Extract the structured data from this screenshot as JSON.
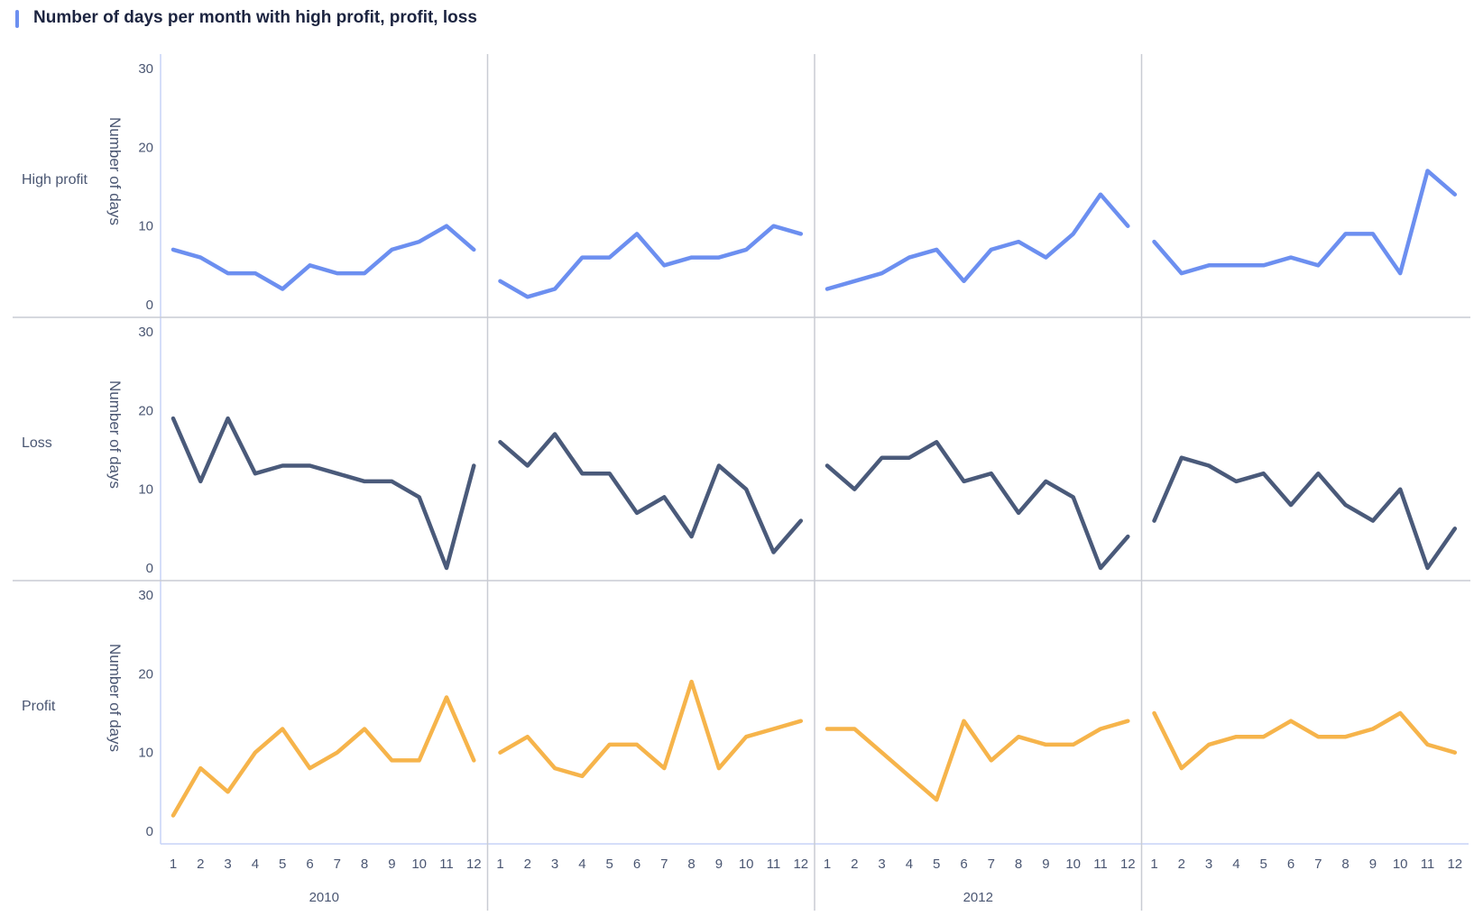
{
  "title": "Number of days per month with high profit, profit, loss",
  "accent_color": "#6c8ff0",
  "chart_data": {
    "type": "line",
    "title": "Number of days per month with high profit, profit, loss",
    "ylabel": "Number of days",
    "xlabel": "",
    "ylim": [
      0,
      30
    ],
    "y_ticks": [
      0,
      10,
      20,
      30
    ],
    "x": [
      1,
      2,
      3,
      4,
      5,
      6,
      7,
      8,
      9,
      10,
      11,
      12
    ],
    "columns": [
      {
        "label": "2010"
      },
      {
        "label": ""
      },
      {
        "label": "2012"
      },
      {
        "label": ""
      }
    ],
    "rows": [
      {
        "label": "High profit",
        "color": "#6c8ff0",
        "panels": [
          [
            7,
            6,
            4,
            4,
            2,
            5,
            4,
            4,
            7,
            8,
            10,
            7
          ],
          [
            3,
            1,
            2,
            6,
            6,
            9,
            5,
            6,
            6,
            7,
            10,
            9
          ],
          [
            2,
            3,
            4,
            6,
            7,
            3,
            7,
            8,
            6,
            9,
            14,
            10
          ],
          [
            8,
            4,
            5,
            5,
            5,
            6,
            5,
            9,
            9,
            4,
            17,
            14
          ]
        ]
      },
      {
        "label": "Loss",
        "color": "#4a5a7a",
        "panels": [
          [
            19,
            11,
            19,
            12,
            13,
            13,
            12,
            11,
            11,
            9,
            0,
            13
          ],
          [
            16,
            13,
            17,
            12,
            12,
            7,
            9,
            4,
            13,
            10,
            2,
            6
          ],
          [
            13,
            10,
            14,
            14,
            16,
            11,
            12,
            7,
            11,
            9,
            0,
            4
          ],
          [
            6,
            14,
            13,
            11,
            12,
            8,
            12,
            8,
            6,
            10,
            0,
            5
          ]
        ]
      },
      {
        "label": "Profit",
        "color": "#f6b44b",
        "panels": [
          [
            2,
            8,
            5,
            10,
            13,
            8,
            10,
            13,
            9,
            9,
            17,
            9
          ],
          [
            10,
            12,
            8,
            7,
            11,
            11,
            8,
            19,
            8,
            12,
            13,
            14
          ],
          [
            13,
            13,
            10,
            7,
            4,
            14,
            9,
            12,
            11,
            11,
            13,
            14
          ],
          [
            15,
            8,
            11,
            12,
            12,
            14,
            12,
            12,
            13,
            15,
            11,
            10
          ]
        ]
      }
    ]
  }
}
